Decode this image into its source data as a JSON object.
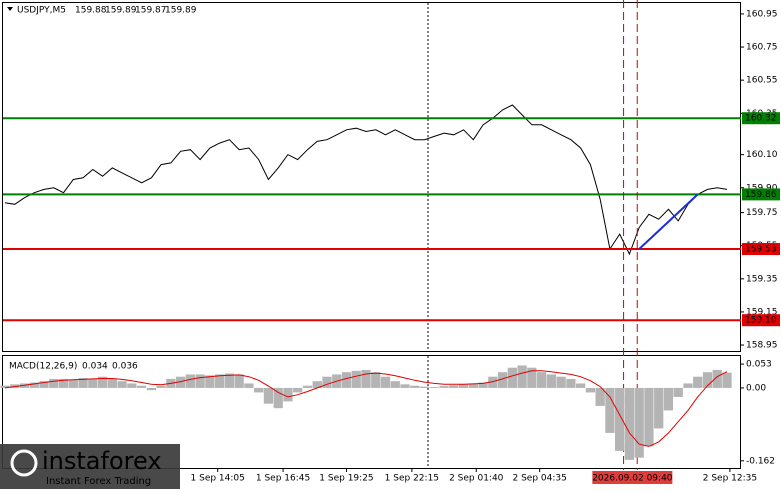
{
  "chart_data": [
    {
      "type": "line",
      "title": "USDJPY,M5",
      "ohlc": [
        159.88,
        159.89,
        159.87,
        159.89
      ],
      "color": "#000000",
      "values": [
        159.81,
        159.8,
        159.84,
        159.87,
        159.89,
        159.9,
        159.87,
        159.95,
        159.96,
        160.01,
        159.97,
        160.02,
        159.99,
        159.96,
        159.93,
        159.96,
        160.04,
        160.05,
        160.12,
        160.13,
        160.07,
        160.14,
        160.17,
        160.19,
        160.13,
        160.14,
        160.07,
        159.95,
        160.02,
        160.1,
        160.07,
        160.13,
        160.18,
        160.19,
        160.22,
        160.25,
        160.26,
        160.24,
        160.25,
        160.22,
        160.25,
        160.22,
        160.19,
        160.19,
        160.21,
        160.23,
        160.22,
        160.25,
        160.19,
        160.28,
        160.32,
        160.37,
        160.4,
        160.34,
        160.28,
        160.28,
        160.25,
        160.22,
        160.19,
        160.14,
        160.04,
        159.83,
        159.53,
        159.62,
        159.5,
        159.66,
        159.74,
        159.71,
        159.77,
        159.7,
        159.8,
        159.86,
        159.89,
        159.9,
        159.89
      ],
      "ylim": [
        158.914,
        161.016
      ],
      "yticks": [
        160.95,
        160.75,
        160.55,
        160.35,
        {
          "value": 160.1,
          "label": "160.10"
        },
        {
          "value": 159.9,
          "label": "159.90"
        },
        159.75,
        159.55,
        159.35,
        159.15,
        158.95
      ],
      "levels": [
        {
          "value": 160.32,
          "color": "#008000"
        },
        {
          "value": 159.86,
          "color": "#008000"
        },
        {
          "value": 159.53,
          "color": "#e00000"
        },
        {
          "value": 159.1,
          "label": "159.10",
          "color": "#e00000"
        }
      ],
      "trendline": {
        "x": [
          65,
          71
        ],
        "values": [
          159.53,
          159.86
        ],
        "color": "#1a2fd6"
      },
      "vlines": [
        63.4,
        64.8
      ],
      "vline_color": "#d00000"
    },
    {
      "type": "macd",
      "title": "MACD(12,26,9)",
      "readouts": [
        0.034,
        0.036
      ],
      "color": "#b4b4b4",
      "signal_color": "#e00000",
      "values": [
        0.005,
        0.008,
        0.01,
        0.012,
        0.015,
        0.02,
        0.02,
        0.018,
        0.022,
        0.02,
        0.025,
        0.02,
        0.015,
        0.01,
        0.005,
        -0.005,
        0.005,
        0.02,
        0.025,
        0.03,
        0.03,
        0.028,
        0.03,
        0.032,
        0.03,
        0.01,
        -0.01,
        -0.035,
        -0.045,
        -0.03,
        -0.01,
        0.005,
        0.015,
        0.025,
        0.03,
        0.035,
        0.038,
        0.04,
        0.035,
        0.025,
        0.015,
        0.008,
        0.005,
        0.003,
        0.002,
        0.004,
        0.006,
        0.008,
        0.01,
        0.012,
        0.025,
        0.035,
        0.045,
        0.05,
        0.045,
        0.035,
        0.03,
        0.025,
        0.02,
        0.01,
        -0.01,
        -0.04,
        -0.1,
        -0.14,
        -0.16,
        -0.155,
        -0.13,
        -0.09,
        -0.05,
        -0.02,
        0.01,
        0.025,
        0.035,
        0.04,
        0.034
      ],
      "signal": [
        0.0,
        0.003,
        0.006,
        0.009,
        0.012,
        0.015,
        0.017,
        0.018,
        0.019,
        0.02,
        0.021,
        0.021,
        0.019,
        0.016,
        0.012,
        0.008,
        0.007,
        0.01,
        0.014,
        0.019,
        0.023,
        0.025,
        0.027,
        0.028,
        0.029,
        0.025,
        0.017,
        0.004,
        -0.01,
        -0.02,
        -0.015,
        -0.008,
        0.0,
        0.008,
        0.015,
        0.021,
        0.026,
        0.031,
        0.033,
        0.031,
        0.027,
        0.022,
        0.017,
        0.013,
        0.01,
        0.008,
        0.008,
        0.008,
        0.009,
        0.01,
        0.014,
        0.02,
        0.027,
        0.033,
        0.038,
        0.038,
        0.036,
        0.033,
        0.03,
        0.025,
        0.016,
        0.003,
        -0.02,
        -0.06,
        -0.1,
        -0.125,
        -0.13,
        -0.12,
        -0.1,
        -0.075,
        -0.05,
        -0.02,
        0.005,
        0.025,
        0.036
      ],
      "ylim": [
        -0.178,
        0.071
      ],
      "yticks": [
        0.053,
        {
          "value": 0,
          "label": "0.00"
        },
        -0.162
      ],
      "xticks": [
        {
          "value": 21.8,
          "label": "1 Sep 14:05"
        },
        {
          "value": 28.5,
          "label": "1 Sep 16:45"
        },
        {
          "value": 35,
          "label": "1 Sep 19:25"
        },
        {
          "value": 41.7,
          "label": "1 Sep 22:15"
        },
        {
          "value": 48.3,
          "label": "2 Sep 01:40"
        },
        {
          "value": 54.8,
          "label": "2 Sep 04:35"
        },
        {
          "value": 74.3,
          "label": "2 Sep 12:35"
        }
      ],
      "cursor": {
        "value": 64.3,
        "label": "2026.09.02 09:40"
      }
    }
  ],
  "logo": {
    "name": "instaforex",
    "tagline": "Instant Forex Trading"
  }
}
